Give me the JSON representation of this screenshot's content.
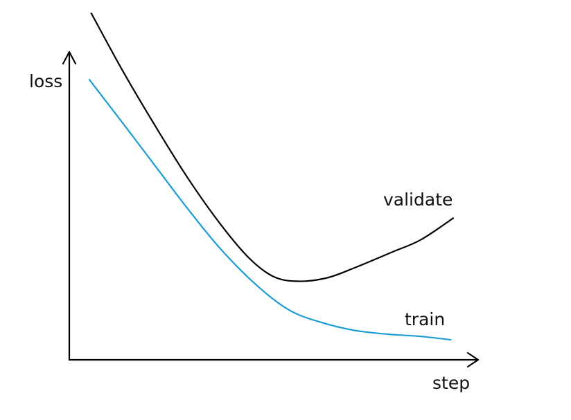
{
  "chart_data": {
    "type": "line",
    "title": "",
    "xlabel": "step",
    "ylabel": "loss",
    "grid": false,
    "xlim": [
      0,
      100
    ],
    "ylim": [
      0,
      100
    ],
    "series": [
      {
        "name": "validate",
        "color": "#000000",
        "points": [
          [
            5.4,
            112.5
          ],
          [
            13,
            94
          ],
          [
            21,
            76
          ],
          [
            29,
            59
          ],
          [
            37,
            44
          ],
          [
            44,
            33
          ],
          [
            50,
            27
          ],
          [
            56,
            25.5
          ],
          [
            63,
            26.6
          ],
          [
            70,
            30
          ],
          [
            79,
            35
          ],
          [
            86,
            39
          ],
          [
            93.9,
            46
          ]
        ]
      },
      {
        "name": "train",
        "color": "#1a9bd7",
        "points": [
          [
            4.9,
            91
          ],
          [
            13,
            77
          ],
          [
            21,
            63
          ],
          [
            29,
            49
          ],
          [
            37,
            36
          ],
          [
            46,
            24
          ],
          [
            54,
            16
          ],
          [
            62,
            12
          ],
          [
            70,
            9.5
          ],
          [
            78,
            8.3
          ],
          [
            86,
            7.6
          ],
          [
            93.3,
            6.5
          ]
        ]
      }
    ],
    "annotations": {
      "series_label_validate": "validate",
      "series_label_train": "train"
    }
  }
}
